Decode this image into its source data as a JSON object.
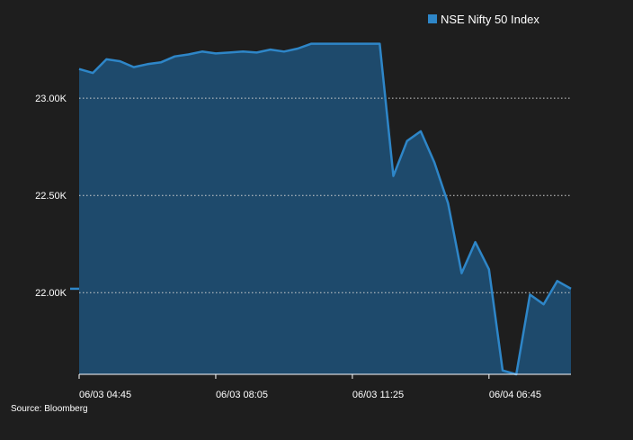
{
  "colors": {
    "background": "#1e1e1e",
    "series_line": "#2e86c8",
    "series_fill": "#1e4a6c",
    "gridline": "#d0d0d0",
    "text": "#ffffff"
  },
  "source_text": "Source: Bloomberg",
  "chart_data": {
    "type": "area",
    "title": "",
    "xlabel": "",
    "ylabel": "",
    "legend": {
      "position": "top-right",
      "entries": [
        "NSE Nifty 50 Index"
      ]
    },
    "grid": {
      "y": true,
      "x": false,
      "style": "dotted"
    },
    "ylim": [
      21580,
      23320
    ],
    "y_ticks": [
      22000,
      22500,
      23000
    ],
    "y_tick_labels": [
      "22.00K",
      "22.50K",
      "23.00K"
    ],
    "x_tick_labels": [
      "06/03 04:45",
      "06/03 08:05",
      "06/03 11:25",
      "06/04 06:45"
    ],
    "x_tick_index": [
      0,
      10,
      20,
      30
    ],
    "series": [
      {
        "name": "NSE Nifty 50 Index",
        "values": [
          23150,
          23130,
          23200,
          23190,
          23160,
          23175,
          23185,
          23215,
          23225,
          23240,
          23230,
          23235,
          23240,
          23235,
          23250,
          23240,
          23255,
          23280,
          23280,
          23280,
          23280,
          23280,
          23280,
          22600,
          22780,
          22830,
          22670,
          22460,
          22100,
          22260,
          22120,
          21600,
          21580,
          21990,
          21940,
          22060,
          22020
        ]
      }
    ],
    "baseline_stub_value": 22020
  }
}
